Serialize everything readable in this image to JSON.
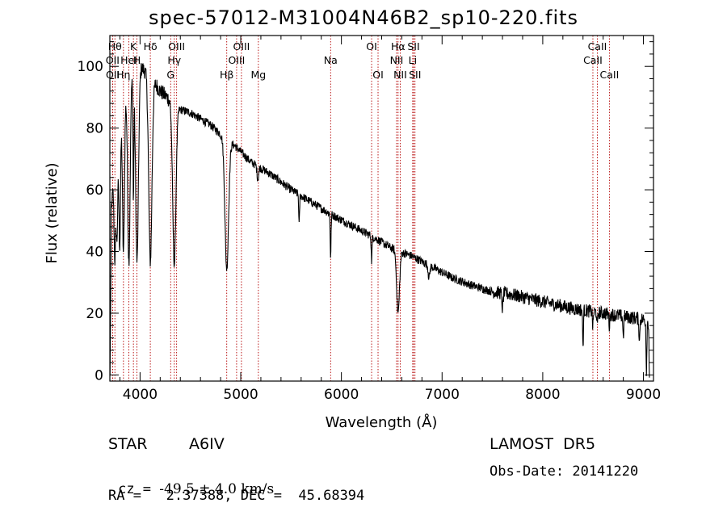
{
  "title": "spec-57012-M31004N46B2_sp10-220.fits",
  "info": {
    "class_label": "STAR",
    "subclass": "A6IV",
    "survey": "LAMOST  DR5",
    "cz_label": "cz = ",
    "cz_value": "-49.5 ± 4.0 km/s",
    "obs_date": "Obs-Date: 20141220",
    "ra_dec": "RA =   2.37388, DEC =  45.68394"
  },
  "chart_data": {
    "type": "line",
    "title": "spec-57012-M31004N46B2_sp10-220.fits",
    "xlabel": "Wavelength (Å)",
    "ylabel": "Flux (relative)",
    "xlim": [
      3700,
      9100
    ],
    "ylim": [
      -2,
      110
    ],
    "x_ticks": [
      4000,
      5000,
      6000,
      7000,
      8000,
      9000
    ],
    "y_ticks": [
      0,
      20,
      40,
      60,
      80,
      100
    ],
    "grid": false,
    "continuum": [
      [
        3700,
        48
      ],
      [
        3760,
        72
      ],
      [
        3820,
        88
      ],
      [
        3900,
        96
      ],
      [
        4000,
        100
      ],
      [
        4100,
        97
      ],
      [
        4200,
        92
      ],
      [
        4300,
        89
      ],
      [
        4400,
        86
      ],
      [
        4500,
        85
      ],
      [
        4600,
        83
      ],
      [
        4700,
        81
      ],
      [
        4800,
        78
      ],
      [
        4950,
        74
      ],
      [
        5100,
        69
      ],
      [
        5300,
        65
      ],
      [
        5500,
        60
      ],
      [
        5700,
        56
      ],
      [
        5900,
        52
      ],
      [
        6100,
        48.5
      ],
      [
        6300,
        45
      ],
      [
        6500,
        41
      ],
      [
        6700,
        38.5
      ],
      [
        6900,
        35
      ],
      [
        7100,
        31.5
      ],
      [
        7300,
        29
      ],
      [
        7500,
        27
      ],
      [
        7700,
        26
      ],
      [
        7900,
        24.5
      ],
      [
        8100,
        23
      ],
      [
        8300,
        21.5
      ],
      [
        8500,
        20.5
      ],
      [
        8700,
        19.5
      ],
      [
        8900,
        18.5
      ],
      [
        9000,
        18
      ],
      [
        9060,
        17
      ]
    ],
    "absorption_features": [
      {
        "center": 3750,
        "depth": 30,
        "width": 8
      },
      {
        "center": 3771,
        "depth": 30,
        "width": 8
      },
      {
        "center": 3798,
        "depth": 40,
        "width": 8
      },
      {
        "center": 3835,
        "depth": 50,
        "width": 10
      },
      {
        "center": 3889,
        "depth": 58,
        "width": 12
      },
      {
        "center": 3934,
        "depth": 40,
        "width": 4
      },
      {
        "center": 3970,
        "depth": 62,
        "width": 14
      },
      {
        "center": 4102,
        "depth": 60,
        "width": 16
      },
      {
        "center": 4340,
        "depth": 52,
        "width": 16
      },
      {
        "center": 4861,
        "depth": 42,
        "width": 18
      },
      {
        "center": 5170,
        "depth": 4,
        "width": 8
      },
      {
        "center": 5580,
        "depth": 10,
        "width": 4
      },
      {
        "center": 5893,
        "depth": 14,
        "width": 4
      },
      {
        "center": 6300,
        "depth": 8,
        "width": 4
      },
      {
        "center": 6563,
        "depth": 20,
        "width": 14
      },
      {
        "center": 6870,
        "depth": 4,
        "width": 8
      },
      {
        "center": 7600,
        "depth": 5,
        "width": 6
      },
      {
        "center": 8400,
        "depth": 12,
        "width": 4
      },
      {
        "center": 8498,
        "depth": 5,
        "width": 4
      },
      {
        "center": 8542,
        "depth": 5,
        "width": 4
      },
      {
        "center": 8662,
        "depth": 4,
        "width": 4
      },
      {
        "center": 8800,
        "depth": 7,
        "width": 4
      },
      {
        "center": 8960,
        "depth": 8,
        "width": 4
      },
      {
        "center": 9030,
        "depth": 16,
        "width": 4
      },
      {
        "center": 9060,
        "depth": 17,
        "width": 4
      }
    ],
    "line_markers": [
      {
        "label": "Hθ",
        "x": 3750,
        "row": 0
      },
      {
        "label": "OII",
        "x": 3727,
        "row": 1
      },
      {
        "label": "OII",
        "x": 3729,
        "row": 2
      },
      {
        "label": "K",
        "x": 3934,
        "row": 0
      },
      {
        "label": "HeI",
        "x": 3889,
        "row": 1
      },
      {
        "label": "Hη",
        "x": 3835,
        "row": 2
      },
      {
        "label": "Hδ",
        "x": 4102,
        "row": 0
      },
      {
        "label": "H",
        "x": 3969,
        "row": 1
      },
      {
        "label": "OIII",
        "x": 4363,
        "row": 0
      },
      {
        "label": "Hγ",
        "x": 4340,
        "row": 1
      },
      {
        "label": "G",
        "x": 4304,
        "row": 2
      },
      {
        "label": "OIII",
        "x": 5007,
        "row": 0
      },
      {
        "label": "OIII",
        "x": 4959,
        "row": 1
      },
      {
        "label": "Hβ",
        "x": 4861,
        "row": 2
      },
      {
        "label": "Mg",
        "x": 5175,
        "row": 2
      },
      {
        "label": "Na",
        "x": 5893,
        "row": 1
      },
      {
        "label": "OI",
        "x": 6300,
        "row": 0
      },
      {
        "label": "OI",
        "x": 6364,
        "row": 2
      },
      {
        "label": "Hα",
        "x": 6563,
        "row": 0
      },
      {
        "label": "NII",
        "x": 6548,
        "row": 1
      },
      {
        "label": "NII",
        "x": 6584,
        "row": 2
      },
      {
        "label": "SII",
        "x": 6717,
        "row": 0
      },
      {
        "label": "Li",
        "x": 6708,
        "row": 1
      },
      {
        "label": "SII",
        "x": 6731,
        "row": 2
      },
      {
        "label": "CaII",
        "x": 8542,
        "row": 0
      },
      {
        "label": "CaII",
        "x": 8498,
        "row": 1
      },
      {
        "label": "CaII",
        "x": 8662,
        "row": 2
      }
    ]
  }
}
